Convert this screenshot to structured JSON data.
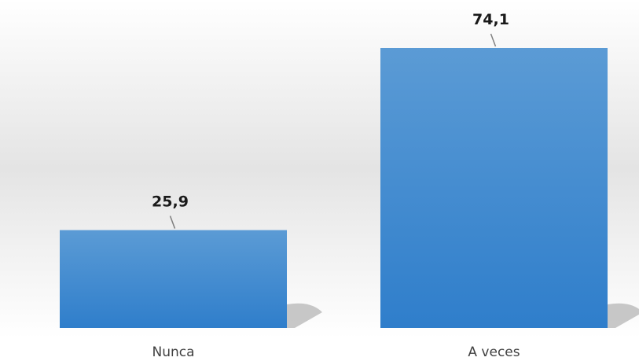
{
  "chart_data": {
    "type": "bar",
    "categories": [
      "Nunca",
      "A veces"
    ],
    "values": [
      25.9,
      74.1
    ],
    "value_labels": [
      "25,9",
      "74,1"
    ],
    "ylim": [
      0,
      80
    ],
    "grid": false,
    "legend": "none",
    "colors": {
      "bar_top": "#5b9bd5",
      "bar_bottom": "#2f7ecb",
      "background_top": "#ffffff",
      "background_mid": "#e6e6e6"
    }
  }
}
